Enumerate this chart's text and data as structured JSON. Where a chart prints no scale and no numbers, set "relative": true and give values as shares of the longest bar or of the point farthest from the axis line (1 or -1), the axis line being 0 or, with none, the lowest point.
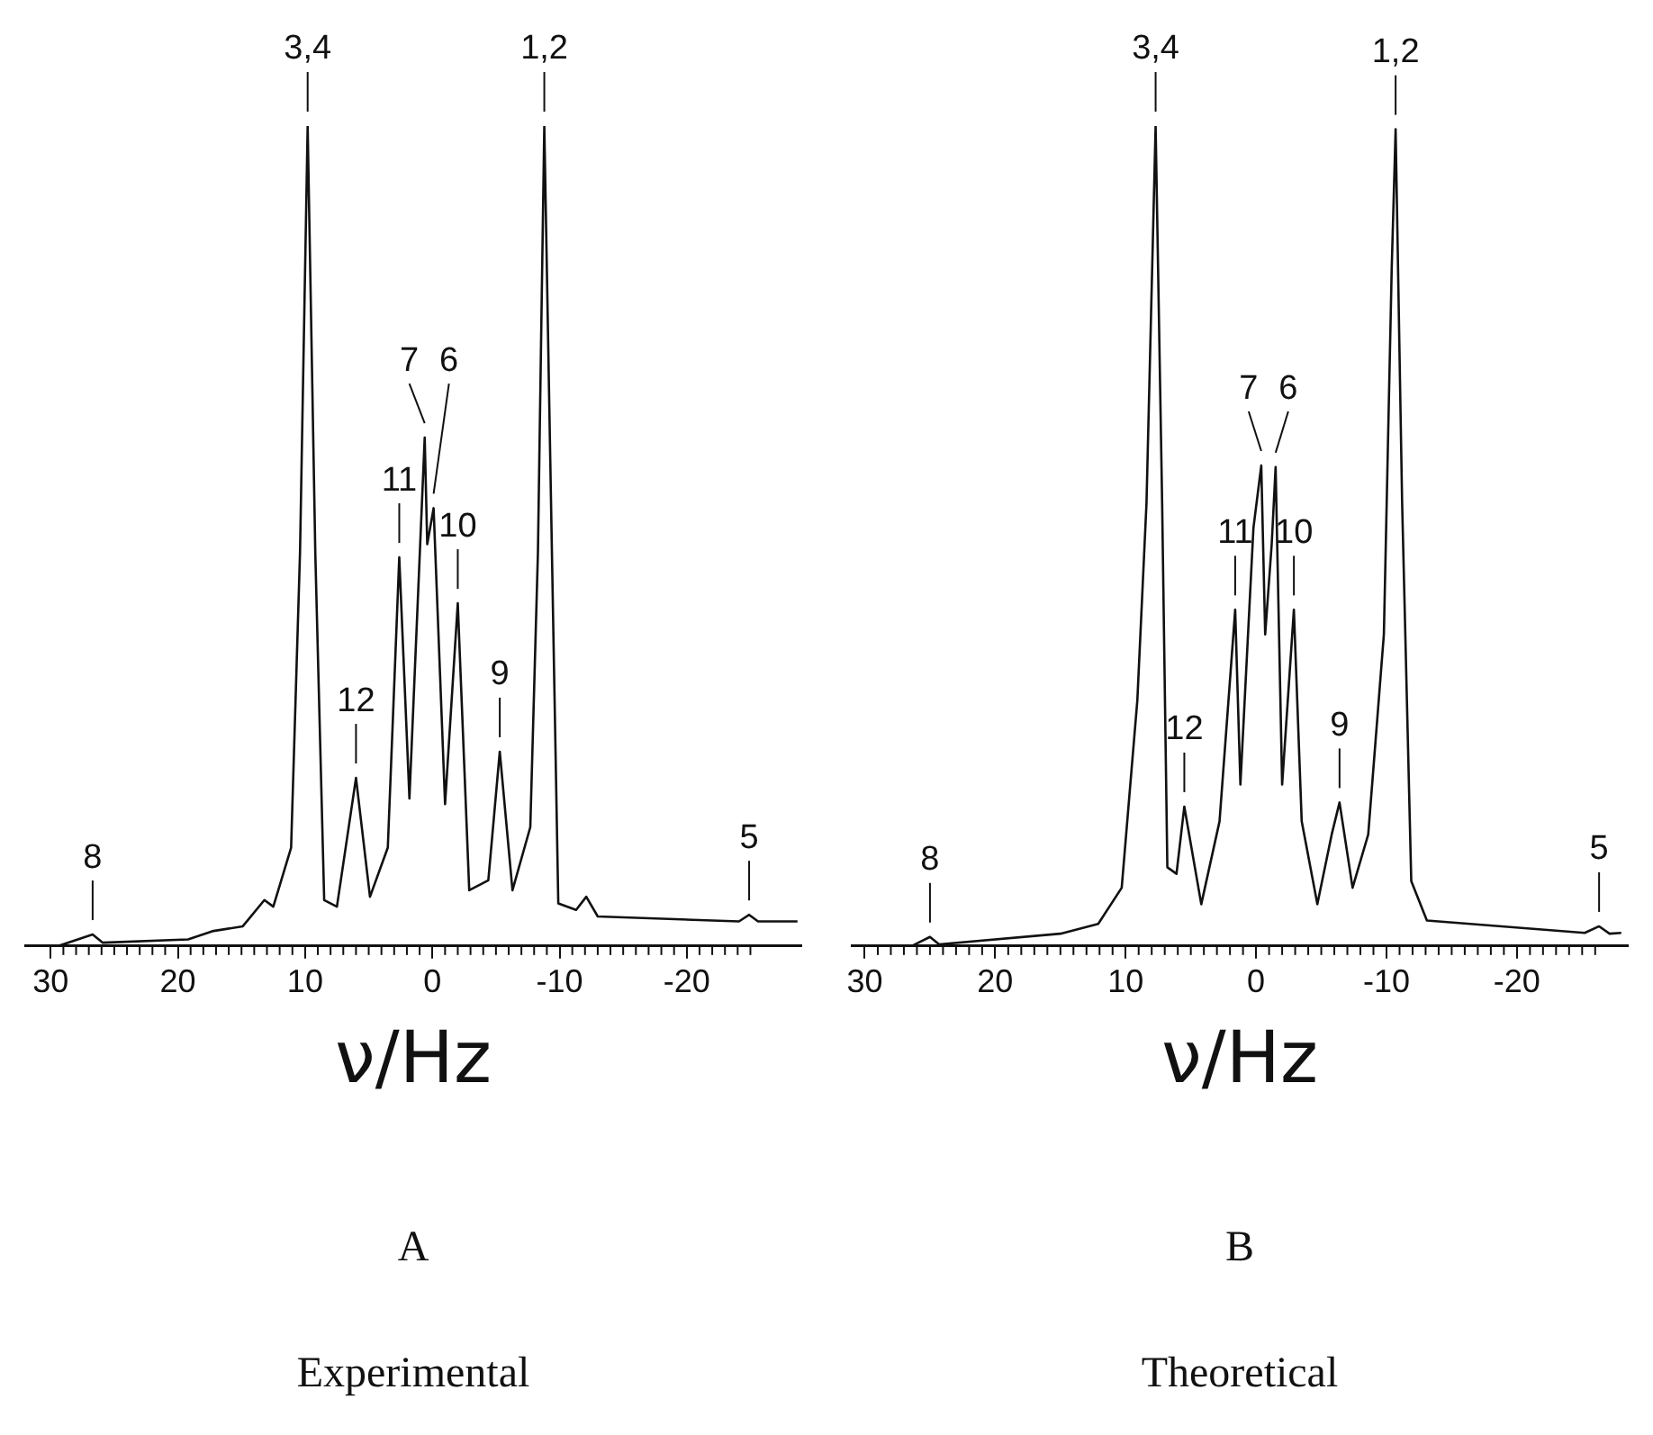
{
  "chart_data": [
    {
      "type": "line",
      "title": "A",
      "subtitle": "Experimental",
      "xlabel": "ν/Hz",
      "relative": true,
      "color": "#111111",
      "grid": false,
      "legend": false,
      "marker": "none",
      "line_style": "solid",
      "tick_labels": "x",
      "x": [
        29.4,
        26.7,
        25.9,
        19.2,
        17.3,
        14.9,
        13.2,
        12.5,
        11.1,
        10.4,
        9.8,
        9.2,
        8.5,
        7.5,
        6.0,
        4.9,
        3.5,
        2.6,
        1.8,
        0.6,
        0.4,
        -0.1,
        -1.0,
        -2.0,
        -2.9,
        -4.4,
        -5.3,
        -6.3,
        -7.7,
        -8.3,
        -8.8,
        -9.4,
        -9.9,
        -11.3,
        -12.1,
        -13.0,
        -24.1,
        -24.9,
        -25.6,
        -28.7
      ],
      "values": [
        0,
        0.014,
        0.004,
        0.008,
        0.018,
        0.024,
        0.056,
        0.048,
        0.12,
        0.48,
        1,
        0.48,
        0.056,
        0.048,
        0.205,
        0.06,
        0.12,
        0.474,
        0.18,
        0.62,
        0.49,
        0.534,
        0.173,
        0.418,
        0.068,
        0.08,
        0.237,
        0.068,
        0.145,
        0.48,
        1,
        0.48,
        0.052,
        0.044,
        0.06,
        0.036,
        0.03,
        0.038,
        0.03,
        0.03
      ],
      "xlim": [
        32,
        -29
      ],
      "xticks": [
        30,
        {
          "value": 29,
          "label": null
        },
        {
          "value": 28,
          "label": null
        },
        {
          "value": 27,
          "label": null
        },
        {
          "value": 26,
          "label": null
        },
        {
          "value": 25,
          "label": null
        },
        {
          "value": 24,
          "label": null
        },
        {
          "value": 23,
          "label": null
        },
        {
          "value": 22,
          "label": null
        },
        {
          "value": 21,
          "label": null
        },
        20,
        {
          "value": 19,
          "label": null
        },
        {
          "value": 18,
          "label": null
        },
        {
          "value": 17,
          "label": null
        },
        {
          "value": 16,
          "label": null
        },
        {
          "value": 15,
          "label": null
        },
        {
          "value": 14,
          "label": null
        },
        {
          "value": 13,
          "label": null
        },
        {
          "value": 12,
          "label": null
        },
        {
          "value": 11,
          "label": null
        },
        10,
        {
          "value": 9,
          "label": null
        },
        {
          "value": 8,
          "label": null
        },
        {
          "value": 7,
          "label": null
        },
        {
          "value": 6,
          "label": null
        },
        {
          "value": 5,
          "label": null
        },
        {
          "value": 4,
          "label": null
        },
        {
          "value": 3,
          "label": null
        },
        {
          "value": 2,
          "label": null
        },
        {
          "value": 1,
          "label": null
        },
        0,
        {
          "value": -1,
          "label": null
        },
        {
          "value": -2,
          "label": null
        },
        {
          "value": -3,
          "label": null
        },
        {
          "value": -4,
          "label": null
        },
        {
          "value": -5,
          "label": null
        },
        {
          "value": -6,
          "label": null
        },
        {
          "value": -7,
          "label": null
        },
        {
          "value": -8,
          "label": null
        },
        {
          "value": -9,
          "label": null
        },
        -10,
        {
          "value": -11,
          "label": null
        },
        {
          "value": -12,
          "label": null
        },
        {
          "value": -13,
          "label": null
        },
        {
          "value": -14,
          "label": null
        },
        {
          "value": -15,
          "label": null
        },
        {
          "value": -16,
          "label": null
        },
        {
          "value": -17,
          "label": null
        },
        {
          "value": -18,
          "label": null
        },
        {
          "value": -19,
          "label": null
        },
        -20,
        {
          "value": -21,
          "label": null
        },
        {
          "value": -22,
          "label": null
        },
        {
          "value": -23,
          "label": null
        },
        {
          "value": -24,
          "label": null
        },
        {
          "value": -25,
          "label": null
        }
      ],
      "annotations": [
        {
          "text": "8",
          "x": 26.7,
          "y": 0.014
        },
        {
          "text": "3,4",
          "x": 9.8,
          "y": 1
        },
        {
          "text": "12",
          "x": 6.0,
          "y": 0.205
        },
        {
          "text": "11",
          "x": 2.6,
          "y": 0.474
        },
        {
          "text": "7",
          "x": 0.6,
          "y": 0.62
        },
        {
          "text": "6",
          "x": -0.1,
          "y": 0.534
        },
        {
          "text": "10",
          "x": -2.0,
          "y": 0.418
        },
        {
          "text": "9",
          "x": -5.3,
          "y": 0.237
        },
        {
          "text": "1,2",
          "x": -8.8,
          "y": 1
        },
        {
          "text": "5",
          "x": -24.9,
          "y": 0.038
        }
      ]
    },
    {
      "type": "line",
      "title": "B",
      "subtitle": "Theoretical",
      "xlabel": "ν/Hz",
      "relative": true,
      "color": "#111111",
      "grid": false,
      "legend": false,
      "marker": "none",
      "line_style": "solid",
      "tick_labels": "x",
      "x": [
        26.4,
        25.0,
        24.3,
        15.0,
        12.1,
        10.3,
        9.1,
        8.4,
        7.7,
        7.2,
        6.8,
        6.1,
        5.5,
        4.2,
        2.8,
        1.6,
        1.2,
        0.2,
        -0.4,
        -0.7,
        -1.2,
        -1.5,
        -2.0,
        -2.9,
        -3.5,
        -4.7,
        -5.8,
        -6.4,
        -7.4,
        -8.6,
        -9.8,
        -10.4,
        -10.7,
        -11.2,
        -11.9,
        -13.1,
        -25.2,
        -26.3,
        -27.1,
        -28.0
      ],
      "values": [
        0,
        0.011,
        0.002,
        0.015,
        0.027,
        0.071,
        0.3,
        0.54,
        1,
        0.54,
        0.096,
        0.088,
        0.17,
        0.051,
        0.152,
        0.41,
        0.197,
        0.51,
        0.586,
        0.38,
        0.49,
        0.584,
        0.197,
        0.41,
        0.152,
        0.051,
        0.136,
        0.175,
        0.071,
        0.136,
        0.38,
        0.826,
        0.996,
        0.54,
        0.079,
        0.031,
        0.016,
        0.024,
        0.015,
        0.016
      ],
      "xlim": [
        31,
        -28.5
      ],
      "xticks": [
        30,
        {
          "value": 29,
          "label": null
        },
        {
          "value": 28,
          "label": null
        },
        {
          "value": 27,
          "label": null
        },
        {
          "value": 26,
          "label": null
        },
        {
          "value": 25,
          "label": null
        },
        {
          "value": 24,
          "label": null
        },
        {
          "value": 23,
          "label": null
        },
        {
          "value": 22,
          "label": null
        },
        {
          "value": 21,
          "label": null
        },
        20,
        {
          "value": 19,
          "label": null
        },
        {
          "value": 18,
          "label": null
        },
        {
          "value": 17,
          "label": null
        },
        {
          "value": 16,
          "label": null
        },
        {
          "value": 15,
          "label": null
        },
        {
          "value": 14,
          "label": null
        },
        {
          "value": 13,
          "label": null
        },
        {
          "value": 12,
          "label": null
        },
        {
          "value": 11,
          "label": null
        },
        10,
        {
          "value": 9,
          "label": null
        },
        {
          "value": 8,
          "label": null
        },
        {
          "value": 7,
          "label": null
        },
        {
          "value": 6,
          "label": null
        },
        {
          "value": 5,
          "label": null
        },
        {
          "value": 4,
          "label": null
        },
        {
          "value": 3,
          "label": null
        },
        {
          "value": 2,
          "label": null
        },
        {
          "value": 1,
          "label": null
        },
        0,
        {
          "value": -1,
          "label": null
        },
        {
          "value": -2,
          "label": null
        },
        {
          "value": -3,
          "label": null
        },
        {
          "value": -4,
          "label": null
        },
        {
          "value": -5,
          "label": null
        },
        {
          "value": -6,
          "label": null
        },
        {
          "value": -7,
          "label": null
        },
        {
          "value": -8,
          "label": null
        },
        {
          "value": -9,
          "label": null
        },
        -10,
        {
          "value": -11,
          "label": null
        },
        {
          "value": -12,
          "label": null
        },
        {
          "value": -13,
          "label": null
        },
        {
          "value": -14,
          "label": null
        },
        {
          "value": -15,
          "label": null
        },
        {
          "value": -16,
          "label": null
        },
        {
          "value": -17,
          "label": null
        },
        {
          "value": -18,
          "label": null
        },
        {
          "value": -19,
          "label": null
        },
        -20,
        {
          "value": -21,
          "label": null
        },
        {
          "value": -22,
          "label": null
        },
        {
          "value": -23,
          "label": null
        },
        {
          "value": -24,
          "label": null
        },
        {
          "value": -25,
          "label": null
        },
        {
          "value": -26,
          "label": null
        }
      ],
      "annotations": [
        {
          "text": "8",
          "x": 25.0,
          "y": 0.011
        },
        {
          "text": "3,4",
          "x": 7.7,
          "y": 1
        },
        {
          "text": "12",
          "x": 5.5,
          "y": 0.17
        },
        {
          "text": "11",
          "x": 1.6,
          "y": 0.41
        },
        {
          "text": "7",
          "x": -0.4,
          "y": 0.586
        },
        {
          "text": "6",
          "x": -1.5,
          "y": 0.584
        },
        {
          "text": "10",
          "x": -2.9,
          "y": 0.41
        },
        {
          "text": "9",
          "x": -6.4,
          "y": 0.175
        },
        {
          "text": "1,2",
          "x": -10.7,
          "y": 0.996
        },
        {
          "text": "5",
          "x": -26.3,
          "y": 0.024
        }
      ]
    }
  ]
}
